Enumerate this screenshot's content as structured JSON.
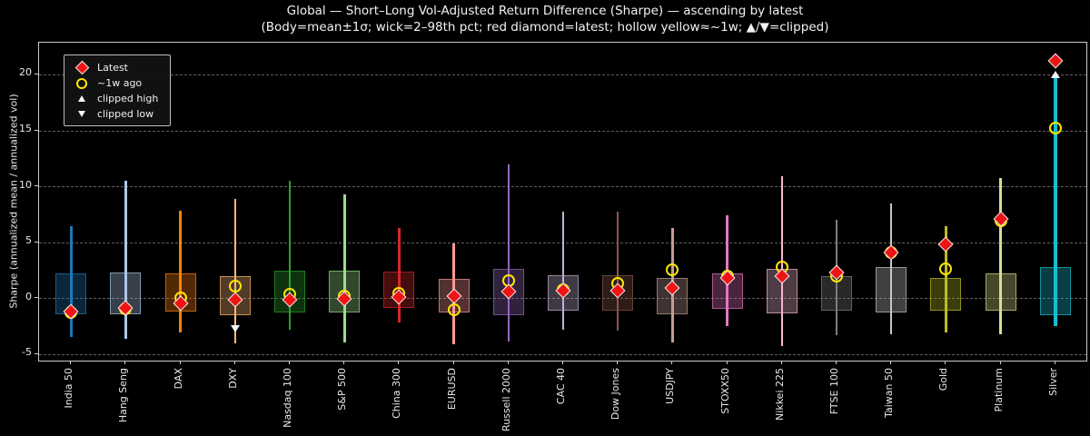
{
  "title": "Global — Short–Long Vol-Adjusted Return Difference (Sharpe) — ascending by latest",
  "subtitle": "(Body=mean±1σ; wick=2–98th pct; red diamond=latest; hollow yellow≈~1w; ▲/▼=clipped)",
  "legend": {
    "items": [
      {
        "label": "Latest",
        "marker": "red-diamond"
      },
      {
        "label": "~1w ago",
        "marker": "yellow-hollow-circle"
      },
      {
        "label": "clipped high",
        "marker": "up-triangle"
      },
      {
        "label": "clipped low",
        "marker": "down-triangle"
      }
    ]
  },
  "colors": {
    "background": "#000000",
    "latest_marker": "#ee1414",
    "latest_marker_edge": "#f2f2f2",
    "week_ago_marker": "#ffe600",
    "clip_marker": "#f5f5f5",
    "grid": "#5f5f5f",
    "axis_border": "#c9c9c9",
    "text": "#e8e8e8"
  },
  "chart_data": {
    "type": "candlestick",
    "title": "Global — Short–Long Vol-Adjusted Return Difference (Sharpe) — ascending by latest",
    "subtitle": "(Body=mean±1σ; wick=2–98th pct; red diamond=latest; hollow yellow≈~1w; ▲/▼=clipped)",
    "xlabel": "",
    "ylabel": "Sharpe (annualized mean / annualized vol)",
    "ylim": [
      -5.6,
      22.8
    ],
    "yticks": [
      -5,
      0,
      5,
      10,
      15,
      20
    ],
    "grid": "horizontal-dashed",
    "legend_position": "upper-left",
    "categories": [
      "India 50",
      "Hang Seng",
      "DAX",
      "DXY",
      "Nasdaq 100",
      "S&P 500",
      "China 300",
      "EURUSD",
      "Russell 2000",
      "CAC 40",
      "Dow Jones",
      "USDJPY",
      "STOXX50",
      "Nikkei 225",
      "FTSE 100",
      "Taiwan 50",
      "Gold",
      "Platinum",
      "Silver"
    ],
    "series": [
      {
        "label": "India 50",
        "color": "#1f77b4",
        "wick_low": -3.45,
        "wick_high": 6.4,
        "body_low": -1.45,
        "body_high": 2.2,
        "latest": -1.2,
        "week_ago": -1.3,
        "clipped": null,
        "clip_at": null
      },
      {
        "label": "Hang Seng",
        "color": "#aec7e8",
        "wick_low": -3.6,
        "wick_high": 10.5,
        "body_low": -1.45,
        "body_high": 2.3,
        "latest": -0.9,
        "week_ago": -0.95,
        "clipped": null,
        "clip_at": null
      },
      {
        "label": "DAX",
        "color": "#ff7f0e",
        "wick_low": -3.05,
        "wick_high": 7.8,
        "body_low": -1.2,
        "body_high": 2.2,
        "latest": -0.45,
        "week_ago": 0.0,
        "clipped": null,
        "clip_at": null
      },
      {
        "label": "DXY",
        "color": "#ffbb78",
        "wick_low": -4.05,
        "wick_high": 8.9,
        "body_low": -1.55,
        "body_high": 1.95,
        "latest": -0.15,
        "week_ago": 1.05,
        "clipped": "low",
        "clip_at": -2.7
      },
      {
        "label": "Nasdaq 100",
        "color": "#2ca02c",
        "wick_low": -2.85,
        "wick_high": 10.5,
        "body_low": -1.25,
        "body_high": 2.5,
        "latest": -0.1,
        "week_ago": 0.35,
        "clipped": null,
        "clip_at": null
      },
      {
        "label": "S&P 500",
        "color": "#98df8a",
        "wick_low": -3.95,
        "wick_high": 9.3,
        "body_low": -1.3,
        "body_high": 2.5,
        "latest": -0.05,
        "week_ago": 0.15,
        "clipped": null,
        "clip_at": null
      },
      {
        "label": "China 300",
        "color": "#d62728",
        "wick_low": -2.2,
        "wick_high": 6.25,
        "body_low": -0.9,
        "body_high": 2.35,
        "latest": 0.1,
        "week_ago": 0.45,
        "clipped": null,
        "clip_at": null
      },
      {
        "label": "EURUSD",
        "color": "#ff9896",
        "wick_low": -4.15,
        "wick_high": 4.9,
        "body_low": -1.3,
        "body_high": 1.75,
        "latest": 0.15,
        "week_ago": -1.05,
        "clipped": null,
        "clip_at": null
      },
      {
        "label": "Russell 2000",
        "color": "#9467bd",
        "wick_low": -3.85,
        "wick_high": 11.95,
        "body_low": -1.55,
        "body_high": 2.65,
        "latest": 0.6,
        "week_ago": 1.6,
        "clipped": null,
        "clip_at": null
      },
      {
        "label": "CAC 40",
        "color": "#c5b0d5",
        "wick_low": -2.85,
        "wick_high": 7.7,
        "body_low": -1.15,
        "body_high": 2.05,
        "latest": 0.65,
        "week_ago": 0.75,
        "clipped": null,
        "clip_at": null
      },
      {
        "label": "Dow Jones",
        "color": "#8c564b",
        "wick_low": -2.9,
        "wick_high": 7.75,
        "body_low": -1.1,
        "body_high": 2.05,
        "latest": 0.7,
        "week_ago": 1.3,
        "clipped": null,
        "clip_at": null
      },
      {
        "label": "USDJPY",
        "color": "#c49c94",
        "wick_low": -3.95,
        "wick_high": 6.25,
        "body_low": -1.4,
        "body_high": 1.85,
        "latest": 0.9,
        "week_ago": 2.55,
        "clipped": null,
        "clip_at": null
      },
      {
        "label": "STOXX50",
        "color": "#e377c2",
        "wick_low": -2.5,
        "wick_high": 7.4,
        "body_low": -0.95,
        "body_high": 2.2,
        "latest": 1.8,
        "week_ago": 1.95,
        "clipped": null,
        "clip_at": null
      },
      {
        "label": "Nikkei 225",
        "color": "#f7b6d2",
        "wick_low": -4.25,
        "wick_high": 10.9,
        "body_low": -1.35,
        "body_high": 2.6,
        "latest": 1.95,
        "week_ago": 2.8,
        "clipped": null,
        "clip_at": null
      },
      {
        "label": "FTSE 100",
        "color": "#7f7f7f",
        "wick_low": -3.3,
        "wick_high": 7.0,
        "body_low": -1.1,
        "body_high": 1.95,
        "latest": 2.3,
        "week_ago": 2.0,
        "clipped": null,
        "clip_at": null
      },
      {
        "label": "Taiwan 50",
        "color": "#c7c7c7",
        "wick_low": -3.25,
        "wick_high": 8.5,
        "body_low": -1.3,
        "body_high": 2.75,
        "latest": 4.1,
        "week_ago": 4.05,
        "clipped": null,
        "clip_at": null
      },
      {
        "label": "Gold",
        "color": "#bcbd22",
        "wick_low": -3.05,
        "wick_high": 6.45,
        "body_low": -1.1,
        "body_high": 1.85,
        "latest": 4.85,
        "week_ago": 2.65,
        "clipped": null,
        "clip_at": null
      },
      {
        "label": "Platinum",
        "color": "#dbdb8d",
        "wick_low": -3.2,
        "wick_high": 10.75,
        "body_low": -1.15,
        "body_high": 2.2,
        "latest": 7.1,
        "week_ago": 6.95,
        "clipped": null,
        "clip_at": null
      },
      {
        "label": "Silver",
        "color": "#17becf",
        "wick_low": -2.5,
        "wick_high": 19.9,
        "body_low": -1.5,
        "body_high": 2.75,
        "latest": 21.25,
        "week_ago": 15.2,
        "clipped": "high",
        "clip_at": 20.0
      }
    ]
  }
}
